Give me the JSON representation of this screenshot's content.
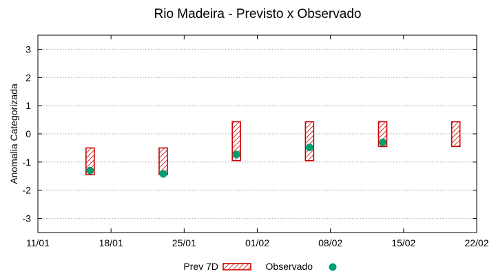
{
  "chart_data": {
    "type": "bar",
    "title": "Rio Madeira - Previsto x Observado",
    "xlabel": "",
    "ylabel": "Anomalia Categorizada",
    "x_tick_labels": [
      "11/01",
      "18/01",
      "25/01",
      "01/02",
      "08/02",
      "15/02",
      "22/02"
    ],
    "x_tick_days": [
      0,
      7,
      14,
      21,
      28,
      35,
      42
    ],
    "xlim_days": [
      0,
      42
    ],
    "ylim": [
      -3.5,
      3.5
    ],
    "y_ticks": [
      -3,
      -2,
      -1,
      0,
      1,
      2,
      3
    ],
    "grid": true,
    "legend_position": "bottom",
    "colors": {
      "forecast_border": "#cc0000",
      "forecast_hatch": "#cc0000",
      "observed": "#009e73",
      "grid": "#a0a0a0"
    },
    "series": [
      {
        "name": "Prev 7D",
        "kind": "floating-bar",
        "points": [
          {
            "day": 5,
            "low": -1.45,
            "high": -0.5
          },
          {
            "day": 12,
            "low": -1.45,
            "high": -0.5
          },
          {
            "day": 19,
            "low": -0.95,
            "high": 0.43
          },
          {
            "day": 26,
            "low": -0.95,
            "high": 0.43
          },
          {
            "day": 33,
            "low": -0.45,
            "high": 0.43
          },
          {
            "day": 40,
            "low": -0.45,
            "high": 0.43
          }
        ]
      },
      {
        "name": "Observado",
        "kind": "point",
        "points": [
          {
            "day": 5,
            "value": -1.3
          },
          {
            "day": 12,
            "value": -1.42
          },
          {
            "day": 19,
            "value": -0.73
          },
          {
            "day": 26,
            "value": -0.48
          },
          {
            "day": 33,
            "value": -0.3
          }
        ]
      }
    ]
  }
}
